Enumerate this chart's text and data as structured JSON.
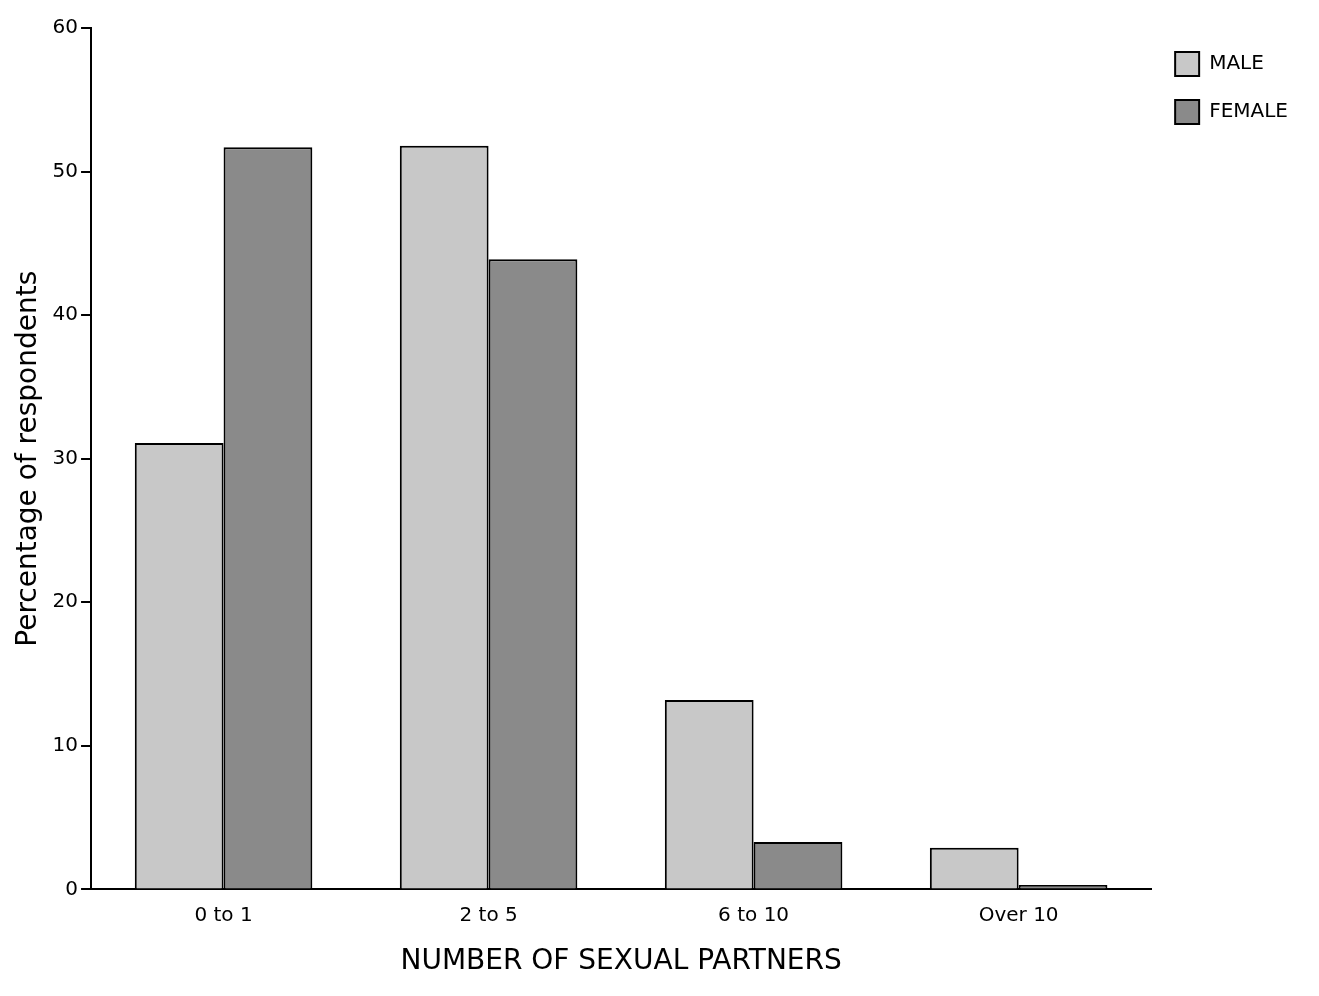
{
  "chart_data": {
    "type": "bar",
    "xlabel": "NUMBER OF SEXUAL PARTNERS",
    "ylabel": "Percentage of respondents",
    "categories": [
      "0 to 1",
      "2 to 5",
      "6 to 10",
      "Over 10"
    ],
    "series": [
      {
        "name": "MALE",
        "color": "#c8c8c8",
        "values": [
          31.1,
          51.8,
          13.2,
          2.9
        ]
      },
      {
        "name": "FEMALE",
        "color": "#8a8a8a",
        "values": [
          51.7,
          43.9,
          3.3,
          0.3
        ]
      }
    ],
    "ylim": [
      0,
      60
    ],
    "yticks": [
      0,
      10,
      20,
      30,
      40,
      50,
      60
    ],
    "grid": false,
    "legend": "top right"
  }
}
